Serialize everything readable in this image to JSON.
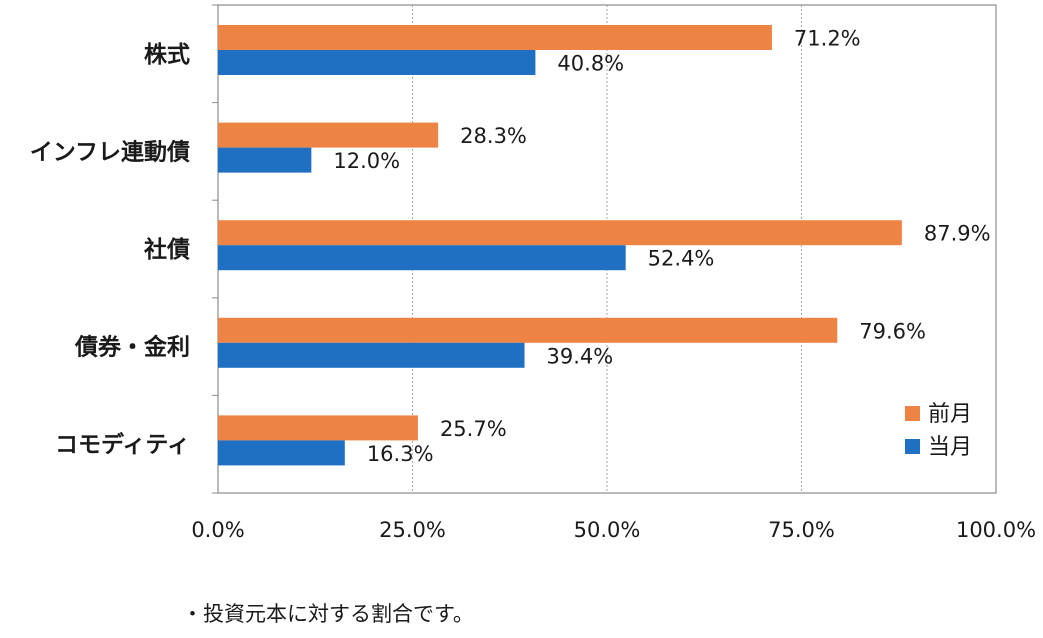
{
  "chart_data": {
    "type": "bar",
    "orientation": "horizontal",
    "categories": [
      "株式",
      "インフレ連動債",
      "社債",
      "債券・金利",
      "コモディティ"
    ],
    "series": [
      {
        "name": "前月",
        "values": [
          71.2,
          28.3,
          87.9,
          79.6,
          25.7
        ],
        "labels": [
          "71.2%",
          "28.3%",
          "87.9%",
          "79.6%",
          "25.7%"
        ],
        "color": "#ED8444"
      },
      {
        "name": "当月",
        "values": [
          40.8,
          12.0,
          52.4,
          39.4,
          16.3
        ],
        "labels": [
          "40.8%",
          "12.0%",
          "52.4%",
          "39.4%",
          "16.3%"
        ],
        "color": "#1F6FC3"
      }
    ],
    "xlim": [
      0,
      100
    ],
    "xticks": [
      0,
      25,
      50,
      75,
      100
    ],
    "xtick_labels": [
      "0.0%",
      "25.0%",
      "50.0%",
      "75.0%",
      "100.0%"
    ],
    "grid": true,
    "legend_position": "bottom-right"
  },
  "footnote": "・投資元本に対する割合です。"
}
